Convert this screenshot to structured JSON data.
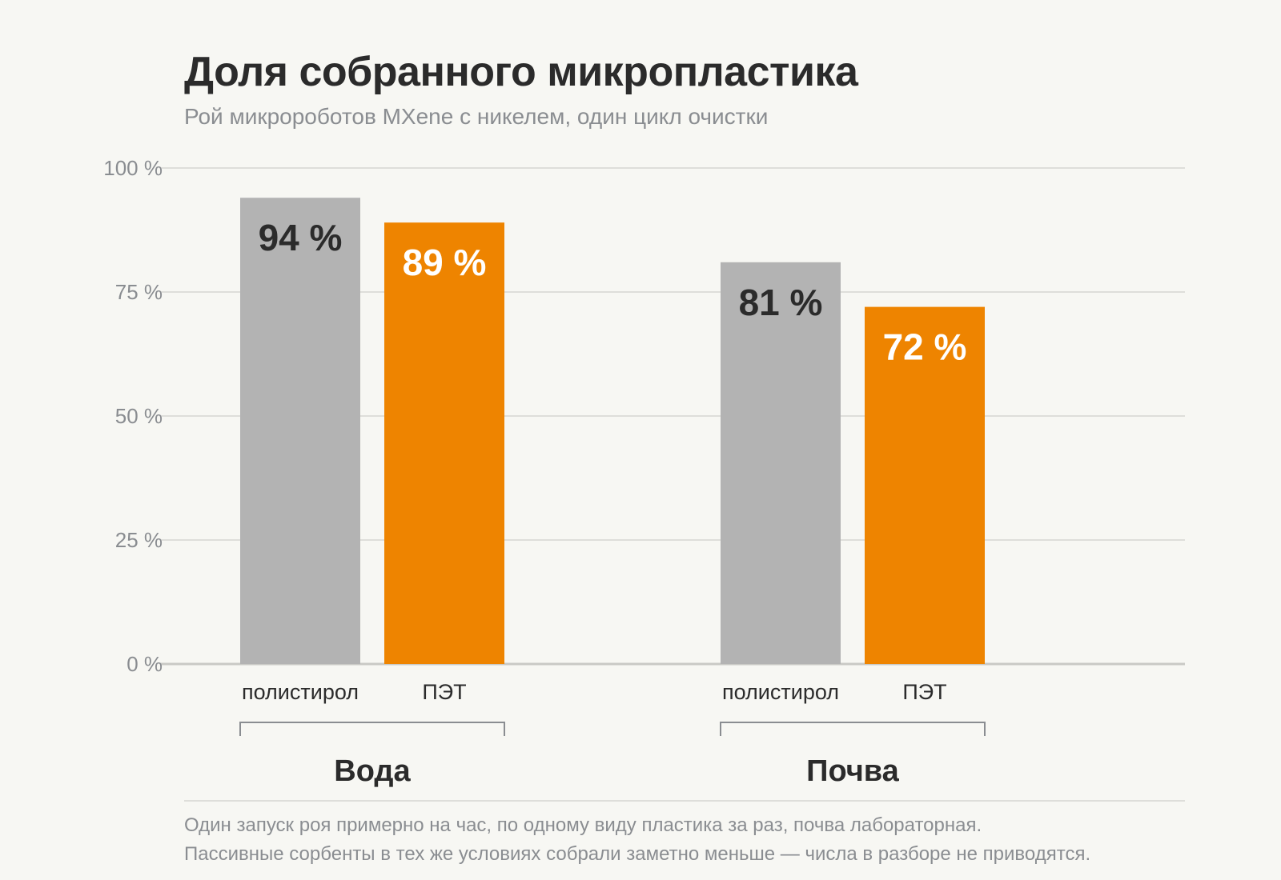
{
  "title": "Доля собранного микропластика",
  "subtitle": "Рой микророботов MXene с никелем, один цикл очистки",
  "footnote": {
    "line1": "Один запуск роя примерно на час, по одному виду пластика за раз, почва лабораторная.",
    "line2": "Пассивные сорбенты в тех же условиях собрали заметно меньше — числа в разборе не приводятся."
  },
  "colors": {
    "polystyrene": "#b3b3b3",
    "pet": "#ee8400",
    "label_dark": "#2b2b2b",
    "label_light": "#ffffff",
    "grid": "#dededa",
    "axis": "#c9c9c5"
  },
  "chart_data": {
    "type": "bar",
    "title": "Доля собранного микропластика",
    "subtitle": "Рой микророботов MXene с никелем, один цикл очистки",
    "ylim": [
      0,
      100
    ],
    "yticks": [
      0,
      25,
      50,
      75,
      100
    ],
    "ytick_labels": [
      "0 %",
      "25 %",
      "50 %",
      "75 %",
      "100 %"
    ],
    "grid": true,
    "legend": "none",
    "groups": [
      {
        "name": "Вода",
        "bars": [
          {
            "category": "полистирол",
            "value": 94,
            "label": "94 %",
            "color": "#b3b3b3"
          },
          {
            "category": "ПЭТ",
            "value": 89,
            "label": "89 %",
            "color": "#ee8400"
          }
        ]
      },
      {
        "name": "Почва",
        "bars": [
          {
            "category": "полистирол",
            "value": 81,
            "label": "81 %",
            "color": "#b3b3b3"
          },
          {
            "category": "ПЭТ",
            "value": 72,
            "label": "72 %",
            "color": "#ee8400"
          }
        ]
      }
    ]
  }
}
